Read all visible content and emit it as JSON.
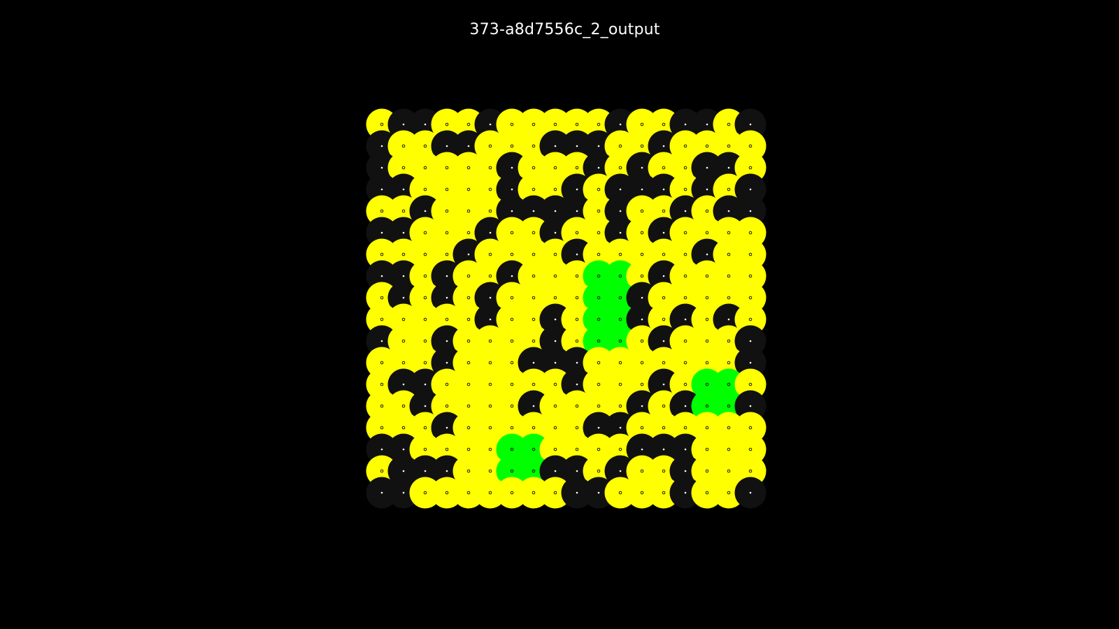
{
  "title": "373-a8d7556c_2_output",
  "colors": {
    "background": "#000000",
    "1": "#ffff00",
    "0": "#111111",
    "2": "#00ff00",
    "marker_on_yellow": "#000000",
    "marker_on_dark": "#ffffff"
  },
  "grid": {
    "rows": 18,
    "cols": 18,
    "cells": [
      [
        1,
        0,
        0,
        1,
        1,
        0,
        1,
        1,
        1,
        1,
        1,
        0,
        1,
        1,
        0,
        0,
        1,
        0
      ],
      [
        0,
        1,
        1,
        0,
        0,
        1,
        1,
        1,
        0,
        0,
        0,
        1,
        1,
        0,
        1,
        1,
        1,
        1
      ],
      [
        0,
        1,
        1,
        1,
        1,
        1,
        0,
        1,
        1,
        1,
        0,
        1,
        0,
        1,
        1,
        0,
        0,
        1
      ],
      [
        0,
        0,
        1,
        1,
        1,
        1,
        0,
        1,
        1,
        0,
        1,
        0,
        0,
        0,
        1,
        0,
        1,
        0
      ],
      [
        1,
        1,
        0,
        1,
        1,
        1,
        0,
        0,
        0,
        0,
        1,
        0,
        1,
        1,
        0,
        1,
        0,
        0
      ],
      [
        0,
        0,
        1,
        1,
        1,
        0,
        1,
        1,
        0,
        1,
        1,
        0,
        1,
        0,
        1,
        1,
        1,
        1
      ],
      [
        1,
        1,
        1,
        1,
        0,
        1,
        1,
        1,
        1,
        0,
        1,
        1,
        1,
        1,
        1,
        0,
        1,
        1
      ],
      [
        0,
        0,
        1,
        0,
        1,
        1,
        0,
        1,
        1,
        1,
        2,
        2,
        1,
        0,
        1,
        1,
        1,
        1
      ],
      [
        1,
        0,
        1,
        0,
        1,
        0,
        1,
        1,
        1,
        1,
        2,
        2,
        0,
        1,
        1,
        1,
        1,
        1
      ],
      [
        1,
        1,
        1,
        1,
        1,
        0,
        1,
        1,
        0,
        1,
        2,
        2,
        0,
        1,
        0,
        1,
        0,
        1
      ],
      [
        0,
        1,
        1,
        0,
        1,
        1,
        1,
        1,
        0,
        1,
        2,
        2,
        1,
        0,
        1,
        1,
        1,
        0
      ],
      [
        1,
        1,
        1,
        0,
        1,
        1,
        1,
        0,
        0,
        0,
        1,
        1,
        1,
        1,
        1,
        1,
        1,
        0
      ],
      [
        1,
        0,
        0,
        1,
        1,
        1,
        1,
        1,
        1,
        0,
        1,
        1,
        1,
        0,
        1,
        2,
        2,
        1
      ],
      [
        1,
        1,
        0,
        1,
        1,
        1,
        1,
        0,
        1,
        1,
        1,
        1,
        0,
        1,
        0,
        2,
        2,
        0
      ],
      [
        1,
        1,
        1,
        0,
        1,
        1,
        1,
        1,
        1,
        1,
        0,
        0,
        1,
        1,
        1,
        1,
        1,
        1
      ],
      [
        0,
        0,
        1,
        1,
        1,
        1,
        2,
        2,
        1,
        1,
        1,
        1,
        0,
        0,
        0,
        1,
        1,
        1
      ],
      [
        1,
        0,
        0,
        0,
        1,
        1,
        2,
        2,
        0,
        0,
        1,
        0,
        1,
        1,
        0,
        1,
        1,
        1
      ],
      [
        0,
        0,
        1,
        1,
        1,
        1,
        1,
        1,
        1,
        0,
        0,
        1,
        1,
        1,
        0,
        1,
        1,
        0
      ]
    ]
  }
}
